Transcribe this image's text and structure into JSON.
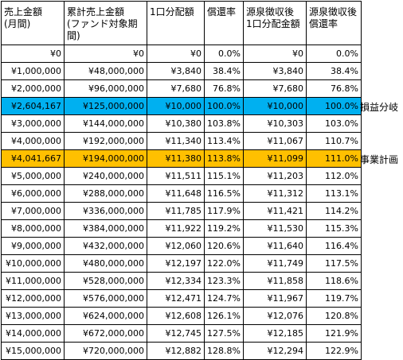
{
  "headers": [
    "売上金額\n(月間)",
    "累計売上金額\n(ファンド対象期間)",
    "1口分配額",
    "償還率",
    "源泉徴収後\n1口分配金額",
    "源泉徴収後\n償還率"
  ],
  "rows": [
    {
      "sales": "¥0",
      "cumulative": "¥0",
      "dist": "¥0",
      "rate": "0.0%",
      "net_dist": "¥0",
      "net_rate": "0.0%"
    },
    {
      "sales": "¥1,000,000",
      "cumulative": "¥48,000,000",
      "dist": "¥3,840",
      "rate": "38.4%",
      "net_dist": "¥3,840",
      "net_rate": "38.4%"
    },
    {
      "sales": "¥2,000,000",
      "cumulative": "¥96,000,000",
      "dist": "¥7,680",
      "rate": "76.8%",
      "net_dist": "¥7,680",
      "net_rate": "76.8%"
    },
    {
      "sales": "¥2,604,167",
      "cumulative": "¥125,000,000",
      "dist": "¥10,000",
      "rate": "100.0%",
      "net_dist": "¥10,000",
      "net_rate": "100.0%",
      "highlight": "blue",
      "note": "損益分岐"
    },
    {
      "sales": "¥3,000,000",
      "cumulative": "¥144,000,000",
      "dist": "¥10,380",
      "rate": "103.8%",
      "net_dist": "¥10,303",
      "net_rate": "103.0%"
    },
    {
      "sales": "¥4,000,000",
      "cumulative": "¥192,000,000",
      "dist": "¥11,340",
      "rate": "113.4%",
      "net_dist": "¥11,067",
      "net_rate": "110.7%"
    },
    {
      "sales": "¥4,041,667",
      "cumulative": "¥194,000,000",
      "dist": "¥11,380",
      "rate": "113.8%",
      "net_dist": "¥11,099",
      "net_rate": "111.0%",
      "highlight": "orange",
      "note": "事業計画"
    },
    {
      "sales": "¥5,000,000",
      "cumulative": "¥240,000,000",
      "dist": "¥11,511",
      "rate": "115.1%",
      "net_dist": "¥11,203",
      "net_rate": "112.0%"
    },
    {
      "sales": "¥6,000,000",
      "cumulative": "¥288,000,000",
      "dist": "¥11,648",
      "rate": "116.5%",
      "net_dist": "¥11,312",
      "net_rate": "113.1%"
    },
    {
      "sales": "¥7,000,000",
      "cumulative": "¥336,000,000",
      "dist": "¥11,785",
      "rate": "117.9%",
      "net_dist": "¥11,421",
      "net_rate": "114.2%"
    },
    {
      "sales": "¥8,000,000",
      "cumulative": "¥384,000,000",
      "dist": "¥11,922",
      "rate": "119.2%",
      "net_dist": "¥11,530",
      "net_rate": "115.3%"
    },
    {
      "sales": "¥9,000,000",
      "cumulative": "¥432,000,000",
      "dist": "¥12,060",
      "rate": "120.6%",
      "net_dist": "¥11,640",
      "net_rate": "116.4%"
    },
    {
      "sales": "¥10,000,000",
      "cumulative": "¥480,000,000",
      "dist": "¥12,197",
      "rate": "122.0%",
      "net_dist": "¥11,749",
      "net_rate": "117.5%"
    },
    {
      "sales": "¥11,000,000",
      "cumulative": "¥528,000,000",
      "dist": "¥12,334",
      "rate": "123.3%",
      "net_dist": "¥11,858",
      "net_rate": "118.6%"
    },
    {
      "sales": "¥12,000,000",
      "cumulative": "¥576,000,000",
      "dist": "¥12,471",
      "rate": "124.7%",
      "net_dist": "¥11,967",
      "net_rate": "119.7%"
    },
    {
      "sales": "¥13,000,000",
      "cumulative": "¥624,000,000",
      "dist": "¥12,608",
      "rate": "126.1%",
      "net_dist": "¥12,076",
      "net_rate": "120.8%"
    },
    {
      "sales": "¥14,000,000",
      "cumulative": "¥672,000,000",
      "dist": "¥12,745",
      "rate": "127.5%",
      "net_dist": "¥12,185",
      "net_rate": "121.9%"
    },
    {
      "sales": "¥15,000,000",
      "cumulative": "¥720,000,000",
      "dist": "¥12,882",
      "rate": "128.8%",
      "net_dist": "¥12,294",
      "net_rate": "122.9%"
    }
  ],
  "colors": {
    "highlight_blue": "#00b0f0",
    "highlight_orange": "#ffc000",
    "grid": "#000000"
  }
}
